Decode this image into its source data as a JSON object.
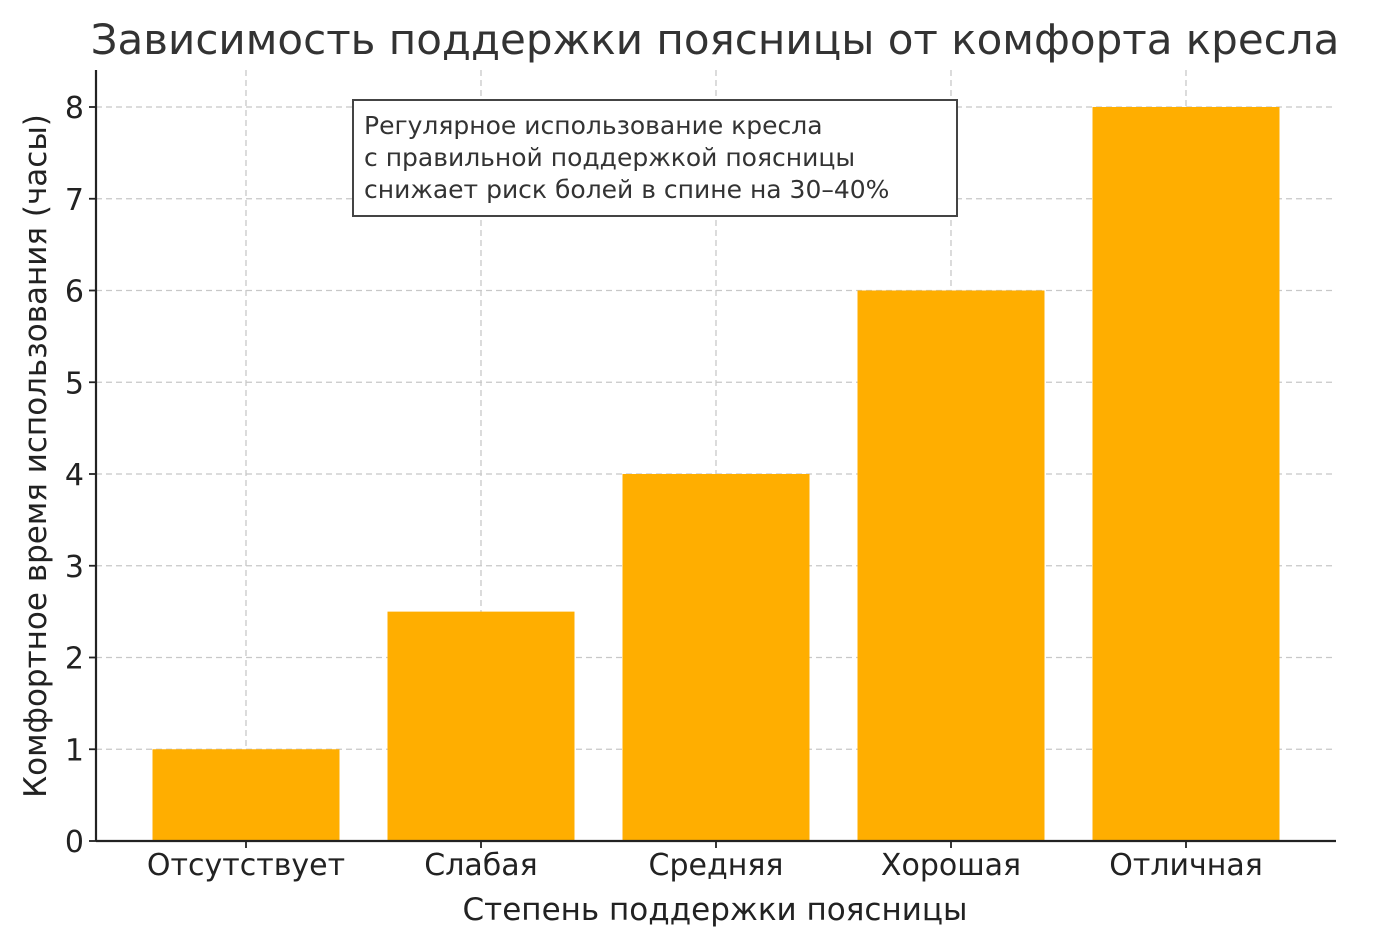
{
  "chart_data": {
    "type": "bar",
    "title": "Зависимость поддержки поясницы от комфорта кресла",
    "xlabel": "Степень поддержки поясницы",
    "ylabel": "Комфортное время использования (часы)",
    "categories": [
      "Отсутствует",
      "Слабая",
      "Средняя",
      "Хорошая",
      "Отличная"
    ],
    "values": [
      1,
      2.5,
      4,
      6,
      8
    ],
    "ylim": [
      0,
      8.4
    ],
    "yticks": [
      0,
      1,
      2,
      3,
      4,
      5,
      6,
      7,
      8
    ],
    "grid": true,
    "bar_color": "#FFAE00",
    "annotation": [
      "Регулярное использование кресла",
      "с правильной поддержкой поясницы",
      "снижает риск болей в спине на 30–40%"
    ]
  }
}
